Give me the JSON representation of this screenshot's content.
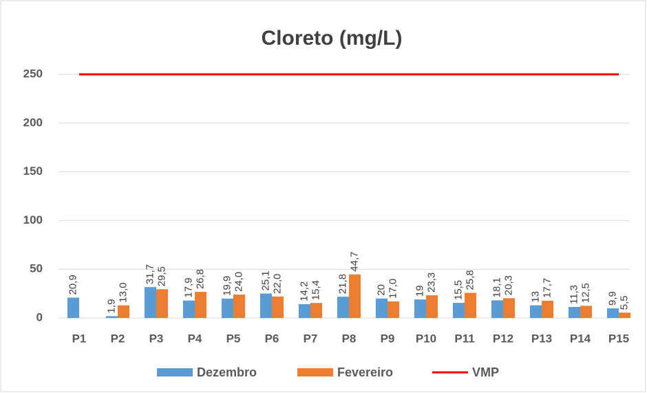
{
  "chart_data": {
    "type": "bar",
    "title": "Cloreto (mg/L)",
    "categories": [
      "P1",
      "P2",
      "P3",
      "P4",
      "P5",
      "P6",
      "P7",
      "P8",
      "P9",
      "P10",
      "P11",
      "P12",
      "P13",
      "P14",
      "P15"
    ],
    "series": [
      {
        "name": "Dezembro",
        "color": "#5b9bd5",
        "type": "bar",
        "values": [
          20.9,
          1.9,
          31.7,
          17.9,
          19.9,
          25.1,
          14.2,
          21.8,
          20,
          19,
          15.5,
          18.1,
          13,
          11.3,
          9.9
        ],
        "value_labels": [
          "20,9",
          "1,9",
          "31,7",
          "17,9",
          "19,9",
          "25,1",
          "14,2",
          "21,8",
          "20",
          "19",
          "15,5",
          "18,1",
          "13",
          "11,3",
          "9,9"
        ]
      },
      {
        "name": "Fevereiro",
        "color": "#ed7d31",
        "type": "bar",
        "values": [
          null,
          13.0,
          29.5,
          26.8,
          24.0,
          22.0,
          15.4,
          44.7,
          17.0,
          23.3,
          25.8,
          20.3,
          17.7,
          12.5,
          5.5
        ],
        "value_labels": [
          null,
          "13,0",
          "29,5",
          "26,8",
          "24,0",
          "22,0",
          "15,4",
          "44,7",
          "17,0",
          "23,3",
          "25,8",
          "20,3",
          "17,7",
          "12,5",
          "5,5"
        ]
      },
      {
        "name": "VMP",
        "color": "#ff0000",
        "type": "line",
        "values": [
          250,
          250,
          250,
          250,
          250,
          250,
          250,
          250,
          250,
          250,
          250,
          250,
          250,
          250,
          250
        ]
      }
    ],
    "ylim": [
      0,
      250
    ],
    "yticks": [
      0,
      50,
      100,
      150,
      200,
      250
    ],
    "grid": true,
    "legend": "bottom"
  }
}
